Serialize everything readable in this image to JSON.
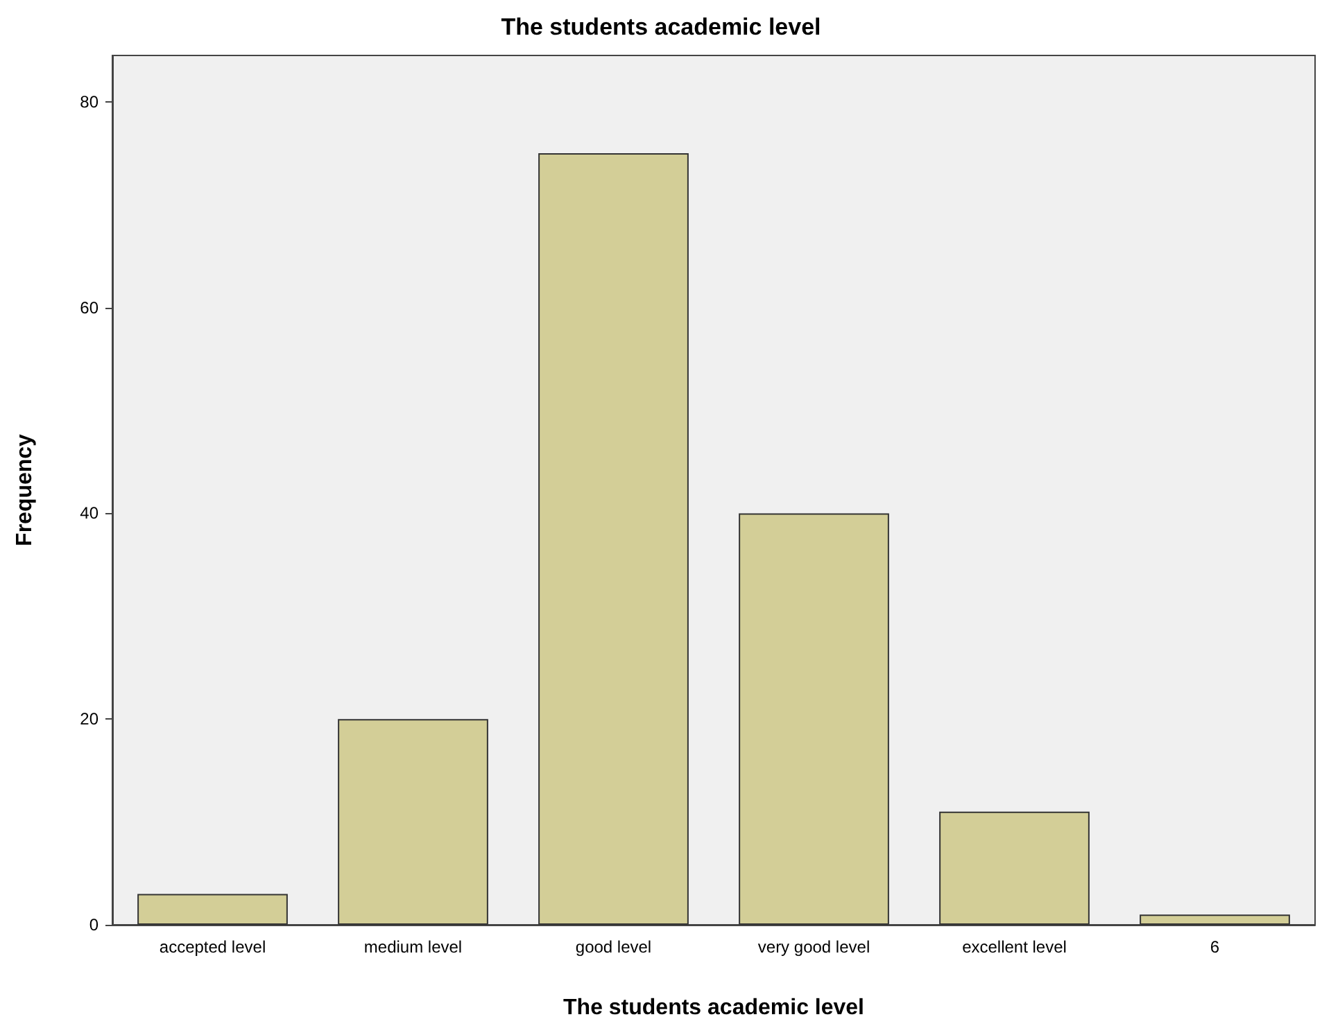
{
  "chart_data": {
    "type": "bar",
    "title": "The students academic level",
    "xlabel": "The students academic level",
    "ylabel": "Frequency",
    "categories": [
      "accepted level",
      "medium level",
      "good level",
      "very good level",
      "excellent level",
      "6"
    ],
    "values": [
      3,
      20,
      75,
      40,
      11,
      1
    ],
    "color": "#d3ce97",
    "ylim": [
      0,
      84.5
    ],
    "yticks": [
      0,
      20,
      40,
      60,
      80
    ]
  }
}
